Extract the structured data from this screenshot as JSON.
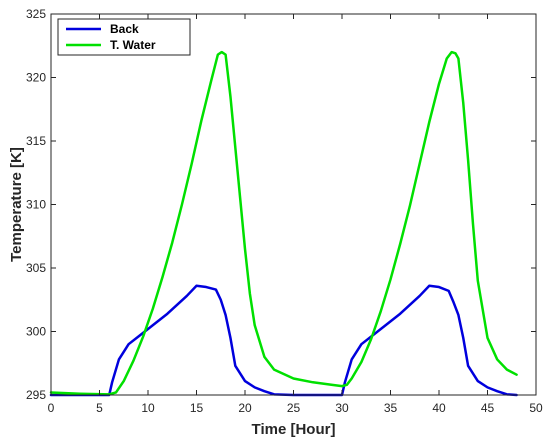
{
  "chart_data": {
    "type": "line",
    "title": "",
    "xlabel": "Time [Hour]",
    "ylabel": "Temperature [K]",
    "xlim": [
      0,
      50
    ],
    "ylim": [
      295,
      325
    ],
    "xticks": [
      0,
      5,
      10,
      15,
      20,
      25,
      30,
      35,
      40,
      45,
      50
    ],
    "yticks": [
      295,
      300,
      305,
      310,
      315,
      320,
      325
    ],
    "grid": false,
    "legend_position": "top-left",
    "series": [
      {
        "name": "Back",
        "color": "#0000dd",
        "x": [
          0,
          5,
          6,
          6.3,
          7,
          8,
          9,
          10,
          11,
          12,
          13,
          14,
          15,
          16,
          17,
          17.5,
          18,
          18.5,
          19,
          20,
          21,
          22,
          23,
          25,
          28,
          29.5,
          30,
          30.3,
          31,
          32,
          33,
          34,
          35,
          36,
          37,
          38,
          39,
          40,
          41,
          41.5,
          42,
          42.5,
          43,
          44,
          45,
          46,
          47,
          48
        ],
        "y": [
          295.0,
          295.0,
          295.0,
          296.0,
          297.8,
          299.0,
          299.6,
          300.2,
          300.8,
          301.4,
          302.1,
          302.8,
          303.6,
          303.5,
          303.3,
          302.5,
          301.3,
          299.5,
          297.3,
          296.1,
          295.6,
          295.3,
          295.05,
          295.0,
          295.0,
          295.0,
          295.0,
          296.0,
          297.8,
          299.0,
          299.6,
          300.2,
          300.8,
          301.4,
          302.1,
          302.8,
          303.6,
          303.5,
          303.2,
          302.3,
          301.3,
          299.5,
          297.3,
          296.1,
          295.6,
          295.3,
          295.05,
          295.0
        ]
      },
      {
        "name": "T. Water",
        "color": "#00e000",
        "x": [
          0,
          3,
          6,
          6.7,
          7.5,
          8.5,
          9.5,
          10.5,
          11.5,
          12.5,
          13.5,
          14.5,
          15.5,
          16.5,
          17.2,
          17.6,
          18,
          18.5,
          19,
          19.5,
          20,
          20.5,
          21,
          22,
          23,
          25,
          27,
          29,
          30,
          30.5,
          31,
          32,
          33,
          34,
          35,
          36,
          37,
          38,
          39,
          40,
          40.8,
          41.3,
          41.7,
          42,
          42.5,
          43,
          43.5,
          44,
          45,
          46,
          47,
          48
        ],
        "y": [
          295.2,
          295.1,
          295.05,
          295.2,
          296.1,
          297.7,
          299.6,
          301.8,
          304.3,
          307.0,
          310.0,
          313.2,
          316.6,
          319.7,
          321.8,
          322.0,
          321.8,
          318.5,
          314.5,
          310.5,
          306.5,
          303.0,
          300.5,
          298.0,
          297.0,
          296.3,
          296.0,
          295.8,
          295.7,
          295.8,
          296.3,
          297.6,
          299.4,
          301.6,
          304.1,
          306.9,
          309.9,
          313.2,
          316.5,
          319.5,
          321.5,
          322.0,
          321.9,
          321.5,
          318.0,
          313.5,
          308.5,
          304.0,
          299.5,
          297.8,
          297.0,
          296.6
        ]
      }
    ]
  }
}
